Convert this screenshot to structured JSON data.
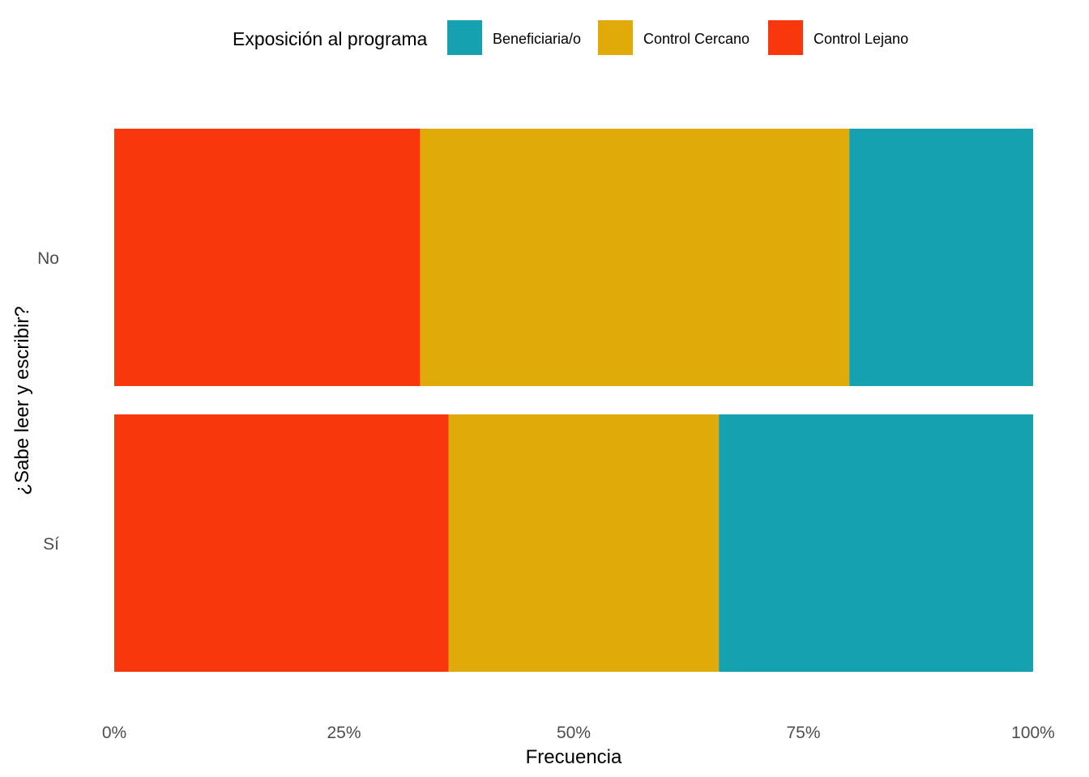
{
  "chart_data": {
    "type": "bar",
    "orientation": "horizontal",
    "stacked": true,
    "normalized": true,
    "xlabel": "Frecuencia",
    "ylabel": "¿Sabe leer y escribir?",
    "xlim": [
      0,
      100
    ],
    "x_ticks": [
      "0%",
      "25%",
      "50%",
      "75%",
      "100%"
    ],
    "categories": [
      "No",
      "Sí"
    ],
    "legend": {
      "title": "Exposición al programa",
      "position": "top"
    },
    "grid": false,
    "series": [
      {
        "name": "Control Lejano",
        "color": "#F8380C",
        "values": [
          33.3,
          36.4
        ]
      },
      {
        "name": "Control Cercano",
        "color": "#E0AB08",
        "values": [
          46.7,
          29.4
        ]
      },
      {
        "name": "Beneficiaria/o",
        "color": "#15A1AF",
        "values": [
          20.0,
          34.2
        ]
      }
    ],
    "legend_order": [
      "Beneficiaria/o",
      "Control Cercano",
      "Control Lejano"
    ]
  }
}
